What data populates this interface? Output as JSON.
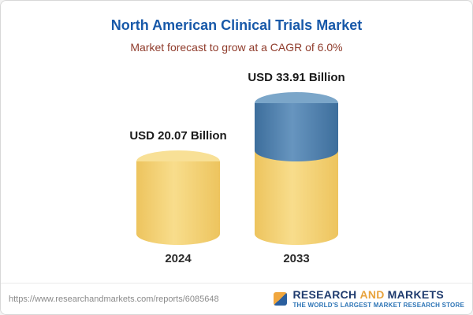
{
  "header": {
    "title": "North American Clinical Trials Market",
    "subtitle": "Market forecast to grow at a CAGR of 6.0%"
  },
  "chart_data": {
    "type": "bar",
    "subtype": "3d-cylinder",
    "title": "North American Clinical Trials Market",
    "subtitle": "Market forecast to grow at a CAGR of 6.0%",
    "categories": [
      "2024",
      "2033"
    ],
    "values": [
      20.07,
      33.91
    ],
    "value_labels": [
      "USD 20.07 Billion",
      "USD 33.91 Billion"
    ],
    "unit": "USD Billion",
    "cagr_percent": 6.0,
    "stacked_2033": {
      "base_2024_value": 20.07,
      "growth_value": 13.84
    },
    "colors": {
      "base_segment": "#F5D271",
      "growth_segment": "#4C80AC"
    },
    "legend": "none",
    "grid": false
  },
  "footer": {
    "url": "https://www.researchandmarkets.com/reports/6085648",
    "logo": {
      "word1": "RESEARCH",
      "word2": "AND",
      "word3": "MARKETS",
      "tagline": "THE WORLD'S LARGEST MARKET RESEARCH STORE"
    }
  }
}
